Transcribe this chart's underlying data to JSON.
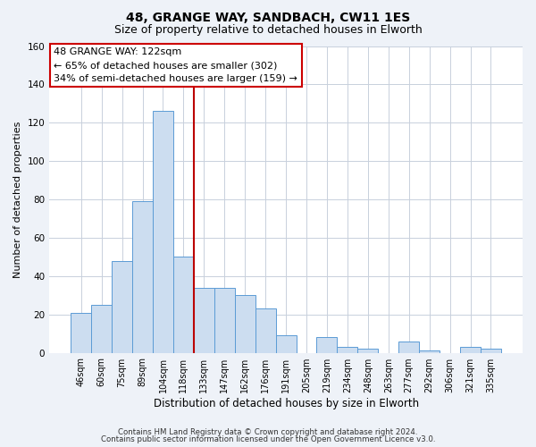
{
  "title1": "48, GRANGE WAY, SANDBACH, CW11 1ES",
  "title2": "Size of property relative to detached houses in Elworth",
  "xlabel": "Distribution of detached houses by size in Elworth",
  "ylabel": "Number of detached properties",
  "bin_labels": [
    "46sqm",
    "60sqm",
    "75sqm",
    "89sqm",
    "104sqm",
    "118sqm",
    "133sqm",
    "147sqm",
    "162sqm",
    "176sqm",
    "191sqm",
    "205sqm",
    "219sqm",
    "234sqm",
    "248sqm",
    "263sqm",
    "277sqm",
    "292sqm",
    "306sqm",
    "321sqm",
    "335sqm"
  ],
  "bar_values": [
    21,
    25,
    48,
    79,
    126,
    50,
    34,
    34,
    30,
    23,
    9,
    0,
    8,
    3,
    2,
    0,
    6,
    1,
    0,
    3,
    2
  ],
  "bar_color": "#ccddf0",
  "bar_edge_color": "#5b9bd5",
  "vline_x": 5.5,
  "vline_color": "#bb0000",
  "ylim": [
    0,
    160
  ],
  "yticks": [
    0,
    20,
    40,
    60,
    80,
    100,
    120,
    140,
    160
  ],
  "annotation_title": "48 GRANGE WAY: 122sqm",
  "annotation_line1": "← 65% of detached houses are smaller (302)",
  "annotation_line2": "34% of semi-detached houses are larger (159) →",
  "annotation_box_color": "#ffffff",
  "annotation_box_edge": "#cc0000",
  "footer1": "Contains HM Land Registry data © Crown copyright and database right 2024.",
  "footer2": "Contains public sector information licensed under the Open Government Licence v3.0.",
  "bg_color": "#eef2f8",
  "plot_bg_color": "#ffffff",
  "grid_color": "#c8d0dc"
}
